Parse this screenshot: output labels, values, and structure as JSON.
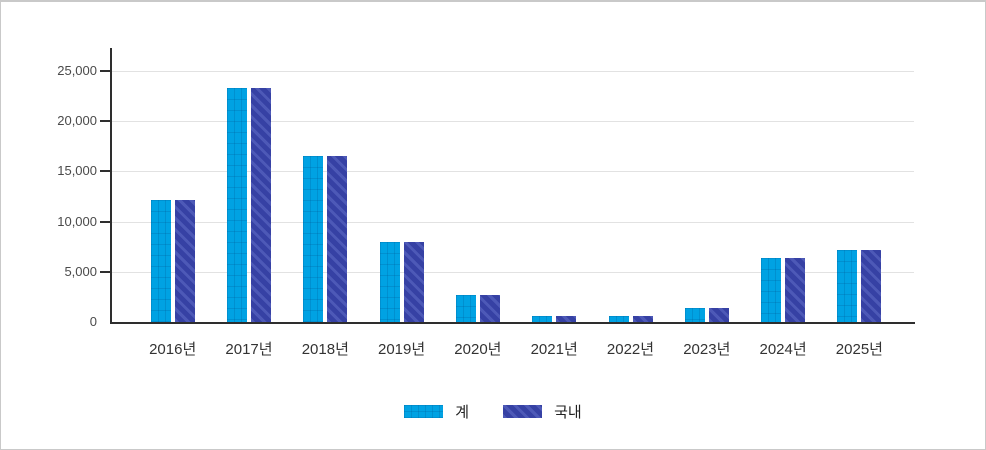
{
  "chart_data": {
    "type": "bar",
    "title": "",
    "xlabel": "",
    "ylabel": "",
    "categories": [
      "2016년",
      "2017년",
      "2018년",
      "2019년",
      "2020년",
      "2021년",
      "2022년",
      "2023년",
      "2024년",
      "2025년"
    ],
    "series": [
      {
        "name": "계",
        "color": "#00a2e3",
        "pattern": "grid",
        "values": [
          12200,
          23300,
          16500,
          8000,
          2700,
          600,
          600,
          1400,
          6350,
          7200
        ]
      },
      {
        "name": "국내",
        "color": "#3641a4",
        "pattern": "diagonal-stripes",
        "stripe_color": "#4d59b7",
        "values": [
          12200,
          23300,
          16500,
          8000,
          2700,
          600,
          600,
          1400,
          6350,
          7200
        ]
      }
    ],
    "y_ticks": [
      "0",
      "5,000",
      "10,000",
      "15,000",
      "20,000",
      "25,000"
    ],
    "y_tick_values": [
      0,
      5000,
      10000,
      15000,
      20000,
      25000
    ],
    "ylim": [
      0,
      25000
    ],
    "grid": "horizontal",
    "legend_position": "bottom",
    "colors": {
      "axis": "#2e2e2e",
      "gridline": "#e2e2e2",
      "tick_text": "#4a4a4a",
      "category_text": "#333333",
      "frame_border": "#c9c9c9",
      "background": "#ffffff"
    }
  }
}
